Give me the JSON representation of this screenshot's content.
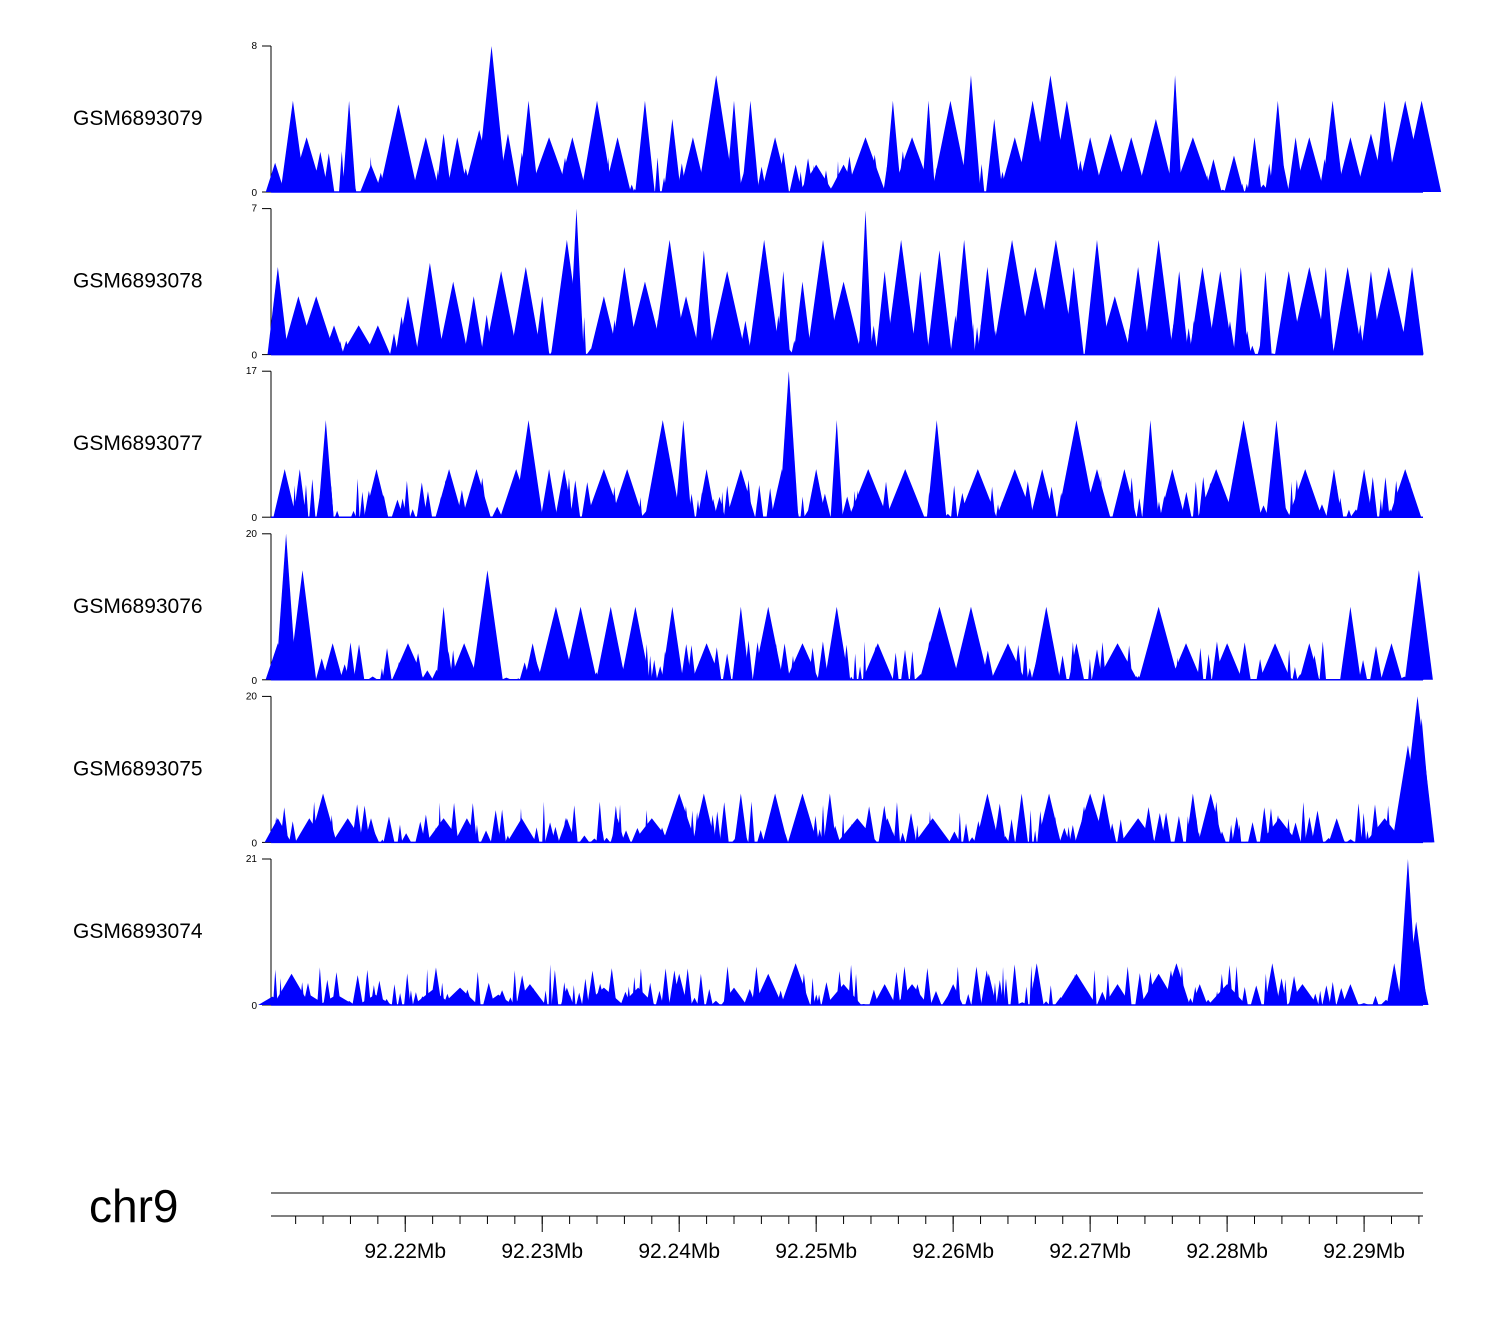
{
  "chart_data": {
    "type": "area",
    "title": "",
    "color": "#0000ff",
    "x_range_mb": [
      92.2102,
      92.2943
    ],
    "chromosome": "chr9",
    "genome_axis_ticks": [
      "92.22Mb",
      "92.23Mb",
      "92.24Mb",
      "92.25Mb",
      "92.26Mb",
      "92.27Mb",
      "92.28Mb",
      "92.29Mb"
    ],
    "genome_axis_tick_values": [
      92.22,
      92.23,
      92.24,
      92.25,
      92.26,
      92.27,
      92.28,
      92.29
    ],
    "tracks": [
      {
        "name": "GSM6893079",
        "ymin": 0,
        "ymax": 8,
        "ytick_min": "0",
        "ytick_max": "8",
        "peaks": [
          [
            92.2105,
            1.6
          ],
          [
            92.2118,
            5
          ],
          [
            92.2128,
            3
          ],
          [
            92.2138,
            2.2
          ],
          [
            92.2159,
            5
          ],
          [
            92.2175,
            1.5
          ],
          [
            92.2195,
            4.8
          ],
          [
            92.2215,
            3
          ],
          [
            92.2228,
            3.2
          ],
          [
            92.2238,
            3
          ],
          [
            92.2254,
            3.4
          ],
          [
            92.2263,
            8
          ],
          [
            92.2275,
            3.2
          ],
          [
            92.229,
            5
          ],
          [
            92.2305,
            3
          ],
          [
            92.2322,
            3
          ],
          [
            92.234,
            5
          ],
          [
            92.2355,
            3
          ],
          [
            92.2375,
            5
          ],
          [
            92.2395,
            4
          ],
          [
            92.241,
            3
          ],
          [
            92.2427,
            6.4
          ],
          [
            92.244,
            5
          ],
          [
            92.2452,
            5
          ],
          [
            92.247,
            3
          ],
          [
            92.2485,
            1.5
          ],
          [
            92.25,
            1.5
          ],
          [
            92.252,
            1.5
          ],
          [
            92.2536,
            3
          ],
          [
            92.2556,
            5
          ],
          [
            92.257,
            3
          ],
          [
            92.2582,
            5
          ],
          [
            92.2598,
            5
          ],
          [
            92.2613,
            6.4
          ],
          [
            92.263,
            4
          ],
          [
            92.2645,
            3
          ],
          [
            92.2658,
            5
          ],
          [
            92.2671,
            6.4
          ],
          [
            92.2683,
            5
          ],
          [
            92.27,
            3
          ],
          [
            92.2715,
            3.2
          ],
          [
            92.273,
            3
          ],
          [
            92.2748,
            4
          ],
          [
            92.2762,
            6.4
          ],
          [
            92.2775,
            3
          ],
          [
            92.279,
            1.8
          ],
          [
            92.2805,
            2
          ],
          [
            92.282,
            3
          ],
          [
            92.2837,
            5
          ],
          [
            92.285,
            3
          ],
          [
            92.286,
            3
          ],
          [
            92.2877,
            5
          ],
          [
            92.289,
            3
          ],
          [
            92.2905,
            3.2
          ],
          [
            92.2915,
            5
          ],
          [
            92.293,
            5
          ],
          [
            92.2942,
            5
          ]
        ]
      },
      {
        "name": "GSM6893078",
        "ymin": 0,
        "ymax": 7,
        "ytick_min": "0",
        "ytick_max": "7",
        "peaks": [
          [
            92.2107,
            4.2
          ],
          [
            92.2122,
            2.8
          ],
          [
            92.2135,
            2.8
          ],
          [
            92.2148,
            1.4
          ],
          [
            92.2166,
            1.4
          ],
          [
            92.218,
            1.4
          ],
          [
            92.2202,
            2.8
          ],
          [
            92.2218,
            4.4
          ],
          [
            92.2235,
            3.5
          ],
          [
            92.225,
            2.8
          ],
          [
            92.227,
            4
          ],
          [
            92.2288,
            4.2
          ],
          [
            92.23,
            2.8
          ],
          [
            92.2318,
            5.5
          ],
          [
            92.2325,
            7
          ],
          [
            92.2345,
            2.8
          ],
          [
            92.236,
            4.2
          ],
          [
            92.2375,
            3.5
          ],
          [
            92.2393,
            5.5
          ],
          [
            92.2405,
            2.8
          ],
          [
            92.2418,
            5
          ],
          [
            92.2435,
            4
          ],
          [
            92.2462,
            5.5
          ],
          [
            92.2476,
            4
          ],
          [
            92.249,
            3.5
          ],
          [
            92.2505,
            5.5
          ],
          [
            92.252,
            3.5
          ],
          [
            92.2536,
            6.9
          ],
          [
            92.255,
            4
          ],
          [
            92.2562,
            5.5
          ],
          [
            92.2576,
            4
          ],
          [
            92.259,
            5
          ],
          [
            92.2608,
            5.5
          ],
          [
            92.2625,
            4.2
          ],
          [
            92.2643,
            5.5
          ],
          [
            92.266,
            4.2
          ],
          [
            92.2675,
            5.5
          ],
          [
            92.2688,
            4.2
          ],
          [
            92.2705,
            5.5
          ],
          [
            92.2718,
            2.8
          ],
          [
            92.2735,
            4.2
          ],
          [
            92.275,
            5.5
          ],
          [
            92.2765,
            4
          ],
          [
            92.2782,
            4.2
          ],
          [
            92.2795,
            4
          ],
          [
            92.281,
            4.2
          ],
          [
            92.2828,
            4
          ],
          [
            92.2845,
            4
          ],
          [
            92.286,
            4.2
          ],
          [
            92.2872,
            4.2
          ],
          [
            92.2888,
            4.2
          ],
          [
            92.2905,
            4
          ],
          [
            92.2918,
            4.2
          ],
          [
            92.2935,
            4.2
          ]
        ]
      },
      {
        "name": "GSM6893077",
        "ymin": 0,
        "ymax": 17,
        "ytick_min": "0",
        "ytick_max": "17",
        "peaks": [
          [
            92.2112,
            5.6
          ],
          [
            92.2123,
            5.6
          ],
          [
            92.2142,
            11.3
          ],
          [
            92.2179,
            5.6
          ],
          [
            92.2232,
            5.6
          ],
          [
            92.2252,
            5.6
          ],
          [
            92.2281,
            5.6
          ],
          [
            92.229,
            11.3
          ],
          [
            92.2305,
            5.6
          ],
          [
            92.2316,
            5.6
          ],
          [
            92.2345,
            5.6
          ],
          [
            92.2362,
            5.6
          ],
          [
            92.2388,
            11.3
          ],
          [
            92.2403,
            11.3
          ],
          [
            92.242,
            5.6
          ],
          [
            92.2445,
            5.6
          ],
          [
            92.2475,
            5.6
          ],
          [
            92.248,
            17
          ],
          [
            92.25,
            5.6
          ],
          [
            92.2515,
            11.3
          ],
          [
            92.2538,
            5.6
          ],
          [
            92.2565,
            5.6
          ],
          [
            92.2588,
            11.3
          ],
          [
            92.2618,
            5.6
          ],
          [
            92.2645,
            5.6
          ],
          [
            92.2665,
            5.6
          ],
          [
            92.269,
            11.3
          ],
          [
            92.2705,
            5.6
          ],
          [
            92.2725,
            5.6
          ],
          [
            92.2744,
            11.3
          ],
          [
            92.276,
            5.6
          ],
          [
            92.2792,
            5.6
          ],
          [
            92.2812,
            11.3
          ],
          [
            92.2836,
            11.3
          ],
          [
            92.2857,
            5.6
          ],
          [
            92.2878,
            5.6
          ],
          [
            92.29,
            5.6
          ],
          [
            92.293,
            5.6
          ]
        ]
      },
      {
        "name": "GSM6893076",
        "ymin": 0,
        "ymax": 20,
        "ytick_min": "0",
        "ytick_max": "20",
        "peaks": [
          [
            92.2107,
            5
          ],
          [
            92.2113,
            20
          ],
          [
            92.212,
            5
          ],
          [
            92.2125,
            15
          ],
          [
            92.2147,
            5
          ],
          [
            92.2202,
            5
          ],
          [
            92.2228,
            10
          ],
          [
            92.2243,
            5
          ],
          [
            92.226,
            15
          ],
          [
            92.2293,
            5
          ],
          [
            92.231,
            10
          ],
          [
            92.2328,
            10
          ],
          [
            92.235,
            10
          ],
          [
            92.2368,
            10
          ],
          [
            92.2395,
            10
          ],
          [
            92.242,
            5
          ],
          [
            92.2445,
            10
          ],
          [
            92.2465,
            10
          ],
          [
            92.249,
            5
          ],
          [
            92.2515,
            10
          ],
          [
            92.2545,
            5
          ],
          [
            92.259,
            10
          ],
          [
            92.2613,
            10
          ],
          [
            92.264,
            5
          ],
          [
            92.2668,
            10
          ],
          [
            92.269,
            5
          ],
          [
            92.272,
            5
          ],
          [
            92.275,
            10
          ],
          [
            92.277,
            5
          ],
          [
            92.28,
            5
          ],
          [
            92.2835,
            5
          ],
          [
            92.286,
            5
          ],
          [
            92.289,
            10
          ],
          [
            92.292,
            5
          ],
          [
            92.294,
            15
          ]
        ]
      },
      {
        "name": "GSM6893075",
        "ymin": 0,
        "ymax": 20,
        "ytick_min": "0",
        "ytick_max": "20",
        "peaks": [
          [
            92.2107,
            3.3
          ],
          [
            92.213,
            3.3
          ],
          [
            92.214,
            6.7
          ],
          [
            92.2158,
            3.3
          ],
          [
            92.2175,
            3.3
          ],
          [
            92.2228,
            3.3
          ],
          [
            92.2245,
            3.3
          ],
          [
            92.2285,
            3.3
          ],
          [
            92.2318,
            3.3
          ],
          [
            92.2355,
            3.3
          ],
          [
            92.238,
            3.3
          ],
          [
            92.24,
            6.7
          ],
          [
            92.2418,
            6.7
          ],
          [
            92.2445,
            6.7
          ],
          [
            92.247,
            6.7
          ],
          [
            92.249,
            6.7
          ],
          [
            92.251,
            6.7
          ],
          [
            92.253,
            3.3
          ],
          [
            92.2552,
            3.3
          ],
          [
            92.2585,
            3.3
          ],
          [
            92.2625,
            6.7
          ],
          [
            92.265,
            6.7
          ],
          [
            92.267,
            6.7
          ],
          [
            92.27,
            6.7
          ],
          [
            92.271,
            6.7
          ],
          [
            92.2735,
            3.3
          ],
          [
            92.2775,
            6.7
          ],
          [
            92.2788,
            6.7
          ],
          [
            92.2838,
            3.3
          ],
          [
            92.288,
            3.3
          ],
          [
            92.2915,
            3.3
          ],
          [
            92.2932,
            13.3
          ],
          [
            92.2939,
            20
          ],
          [
            92.2942,
            17
          ]
        ]
      },
      {
        "name": "GSM6893074",
        "ymin": 0,
        "ymax": 21,
        "ytick_min": "0",
        "ytick_max": "21",
        "peaks": [
          [
            92.2103,
            1.2
          ],
          [
            92.2117,
            4.5
          ],
          [
            92.213,
            1.5
          ],
          [
            92.215,
            1.5
          ],
          [
            92.2178,
            1.5
          ],
          [
            92.222,
            2.2
          ],
          [
            92.224,
            2.5
          ],
          [
            92.2268,
            1.5
          ],
          [
            92.2291,
            3
          ],
          [
            92.2318,
            2.5
          ],
          [
            92.2345,
            2.5
          ],
          [
            92.237,
            2.5
          ],
          [
            92.24,
            4.5
          ],
          [
            92.244,
            2.5
          ],
          [
            92.2465,
            4.5
          ],
          [
            92.2485,
            6
          ],
          [
            92.252,
            3
          ],
          [
            92.255,
            3
          ],
          [
            92.257,
            3
          ],
          [
            92.26,
            3
          ],
          [
            92.2626,
            4.5
          ],
          [
            92.2661,
            6
          ],
          [
            92.269,
            4.5
          ],
          [
            92.272,
            3
          ],
          [
            92.275,
            4.5
          ],
          [
            92.2763,
            6
          ],
          [
            92.278,
            3
          ],
          [
            92.28,
            3
          ],
          [
            92.2833,
            6
          ],
          [
            92.2855,
            3
          ],
          [
            92.289,
            3
          ],
          [
            92.2922,
            6
          ],
          [
            92.2932,
            21
          ],
          [
            92.2938,
            12
          ]
        ]
      }
    ]
  }
}
